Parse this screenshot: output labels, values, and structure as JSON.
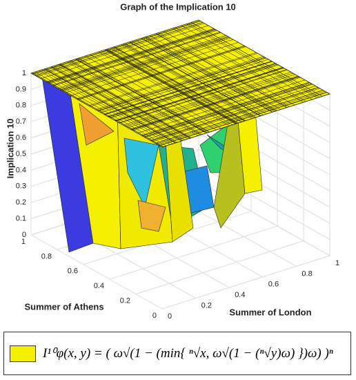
{
  "chart_data": {
    "type": "surface3d",
    "title": "Graph of the Implication 10",
    "xlabel": "Summer of London",
    "ylabel": "Summer of Athens",
    "zlabel": "Implication 10",
    "xlim": [
      0,
      1
    ],
    "xticks": [
      0,
      0.2,
      0.4,
      0.6,
      0.8,
      1
    ],
    "ylim": [
      0,
      1
    ],
    "yticks": [
      0,
      0.2,
      0.4,
      0.6,
      0.8,
      1
    ],
    "zlim": [
      0,
      1
    ],
    "zticks": [
      0,
      0.1,
      0.2,
      0.3,
      0.4,
      0.5,
      0.6,
      0.7,
      0.8,
      0.9,
      1
    ],
    "grid": true,
    "series": [
      {
        "name": "I¹⁰φ(x, y) = ( ω√(1 − (min{ ⁿ√x, ω√(1 − (ⁿ√y)ω) })ω) )ⁿ",
        "color": "#f5f000"
      }
    ]
  }
}
